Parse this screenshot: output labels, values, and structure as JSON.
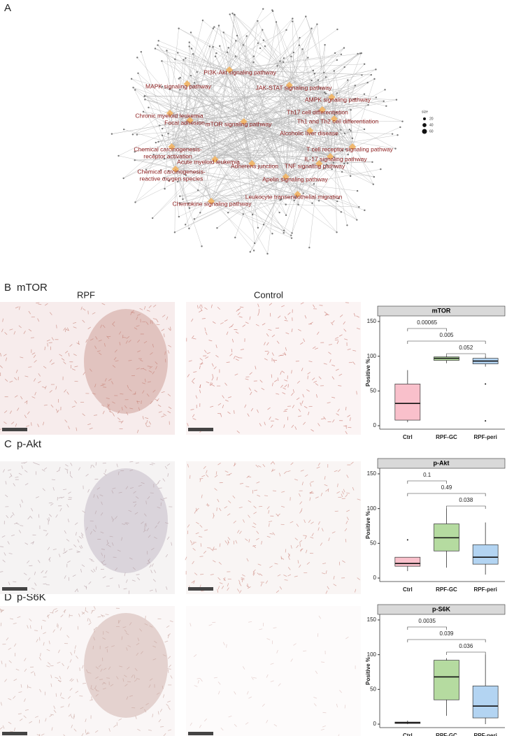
{
  "panel_labels": {
    "a": "A",
    "b": "B",
    "c": "C",
    "d": "D"
  },
  "network": {
    "pathways": [
      {
        "lines": [
          "PI3K-Akt signaling pathway"
        ]
      },
      {
        "lines": [
          "MAPK signaling pathway"
        ]
      },
      {
        "lines": [
          "JAK-STAT signaling pathway"
        ]
      },
      {
        "lines": [
          "AMPK signaling pathway"
        ]
      },
      {
        "lines": [
          "Th17 cell differentiation"
        ]
      },
      {
        "lines": [
          "Chronic myeloid leukemia"
        ]
      },
      {
        "lines": [
          "Th1 and Th2 cell differentiation"
        ]
      },
      {
        "lines": [
          "Focal adhesion"
        ]
      },
      {
        "lines": [
          "mTOR signaling pathway"
        ]
      },
      {
        "lines": [
          "Alcoholic liver disease"
        ]
      },
      {
        "lines": [
          "Chemical carcinogenesis-",
          "receptor activation"
        ]
      },
      {
        "lines": [
          "T cell receptor signaling pathway"
        ]
      },
      {
        "lines": [
          "Acute myeloid leukemia"
        ]
      },
      {
        "lines": [
          "IL-17 signaling pathway"
        ]
      },
      {
        "lines": [
          "Adherens junction"
        ]
      },
      {
        "lines": [
          "TNF signaling pathway"
        ]
      },
      {
        "lines": [
          "Chemical carcinogenesis-",
          "reactive oxygen species"
        ]
      },
      {
        "lines": [
          "Apelin signaling pathway"
        ]
      },
      {
        "lines": [
          "Leukocyte transendothelial migration"
        ]
      },
      {
        "lines": [
          "Chemokine signaling pathway"
        ]
      }
    ],
    "legend_title": "size",
    "legend_sizes": [
      20,
      40,
      60
    ]
  },
  "panels": [
    {
      "title": "mTOR",
      "image_labels": [
        "RPF",
        "Control"
      ]
    },
    {
      "title": "p-Akt"
    },
    {
      "title": "p-S6K"
    }
  ],
  "chart_data": [
    {
      "type": "box",
      "title": "mTOR",
      "y_label": "Positive %",
      "categories": [
        "Ctrl",
        "RPF-GC",
        "RPF-peri"
      ],
      "colors": [
        "#f9c0cb",
        "#b5dba0",
        "#b3d4f2"
      ],
      "boxes": [
        {
          "min": 5,
          "q1": 8,
          "median": 32,
          "q3": 60,
          "max": 80,
          "outliers": []
        },
        {
          "min": 90,
          "q1": 94,
          "median": 97,
          "q3": 99,
          "max": 100,
          "outliers": []
        },
        {
          "min": 85,
          "q1": 89,
          "median": 93,
          "q3": 97,
          "max": 100,
          "outliers": [
            60,
            7
          ]
        }
      ],
      "ylim": [
        -5,
        158
      ],
      "yticks": [
        0,
        50,
        100,
        150
      ],
      "comparisons": [
        {
          "from": "Ctrl",
          "to": "RPF-GC",
          "label": "0.00065"
        },
        {
          "from": "Ctrl",
          "to": "RPF-peri",
          "label": "0.005"
        },
        {
          "from": "RPF-GC",
          "to": "RPF-peri",
          "label": "0.052"
        }
      ]
    },
    {
      "type": "box",
      "title": "p-Akt",
      "y_label": "Positive %",
      "categories": [
        "Ctrl",
        "RPF-GC",
        "RPF-peri"
      ],
      "colors": [
        "#f9c0cb",
        "#b5dba0",
        "#b3d4f2"
      ],
      "boxes": [
        {
          "min": 10,
          "q1": 17,
          "median": 21,
          "q3": 30,
          "max": 30,
          "outliers": [
            55
          ]
        },
        {
          "min": 15,
          "q1": 39,
          "median": 58,
          "q3": 78,
          "max": 100,
          "outliers": []
        },
        {
          "min": 5,
          "q1": 20,
          "median": 30,
          "q3": 48,
          "max": 80,
          "outliers": []
        }
      ],
      "ylim": [
        -5,
        158
      ],
      "yticks": [
        0,
        50,
        100,
        150
      ],
      "comparisons": [
        {
          "from": "Ctrl",
          "to": "RPF-GC",
          "label": "0.1"
        },
        {
          "from": "Ctrl",
          "to": "RPF-peri",
          "label": "0.49"
        },
        {
          "from": "RPF-GC",
          "to": "RPF-peri",
          "label": "0.038"
        }
      ]
    },
    {
      "type": "box",
      "title": "p-S6K",
      "y_label": "Positive %",
      "categories": [
        "Ctrl",
        "RPF-GC",
        "RPF-peri"
      ],
      "colors": [
        "#f9c0cb",
        "#b5dba0",
        "#b3d4f2"
      ],
      "boxes": [
        {
          "min": 0,
          "q1": 1,
          "median": 2,
          "q3": 3,
          "max": 5,
          "outliers": []
        },
        {
          "min": 12,
          "q1": 35,
          "median": 68,
          "q3": 92,
          "max": 95,
          "outliers": []
        },
        {
          "min": 0,
          "q1": 9,
          "median": 26,
          "q3": 55,
          "max": 100,
          "outliers": []
        }
      ],
      "ylim": [
        -5,
        158
      ],
      "yticks": [
        0,
        50,
        100,
        150
      ],
      "comparisons": [
        {
          "from": "Ctrl",
          "to": "RPF-GC",
          "label": "0.0035"
        },
        {
          "from": "Ctrl",
          "to": "RPF-peri",
          "label": "0.039"
        },
        {
          "from": "RPF-GC",
          "to": "RPF-peri",
          "label": "0.036"
        }
      ]
    }
  ]
}
